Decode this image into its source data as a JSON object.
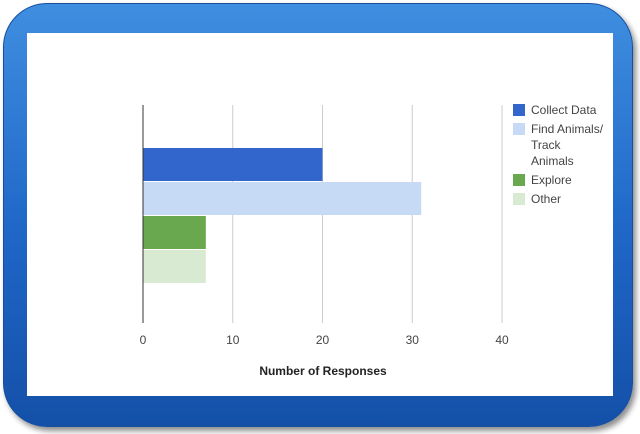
{
  "chart_data": {
    "type": "bar",
    "orientation": "horizontal",
    "xlabel": "Number of Responses",
    "xlim": [
      0,
      40
    ],
    "x_ticks": [
      "0",
      "10",
      "20",
      "30",
      "40"
    ],
    "grid": true,
    "legend_position": "right",
    "series": [
      {
        "name": "Collect Data",
        "legend_lines": [
          "Collect Data"
        ],
        "value": 20,
        "color": "#3366cc"
      },
      {
        "name": "Find Animals/ Track Animals",
        "legend_lines": [
          "Find Animals/",
          "Track",
          "Animals"
        ],
        "value": 31,
        "color": "#c6d9f5"
      },
      {
        "name": "Explore",
        "legend_lines": [
          "Explore"
        ],
        "value": 7,
        "color": "#6aa84f"
      },
      {
        "name": "Other",
        "legend_lines": [
          "Other"
        ],
        "value": 7,
        "color": "#d9ead3"
      }
    ]
  }
}
